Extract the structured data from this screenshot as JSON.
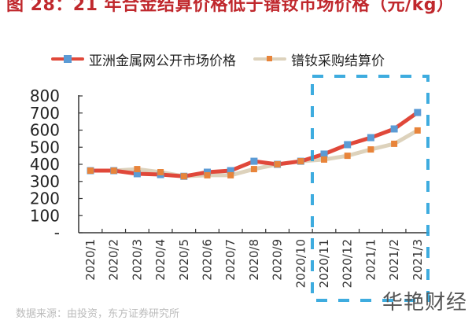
{
  "title": "图 28：21 年合金结算价格低于镨钕市场价格（元/kg）",
  "source": "数据来源：由投资，东方证券研究所",
  "watermark": "华艳财经",
  "legend": [
    {
      "label": "亚洲金属网公开市场价格",
      "line_color": "#e0483a",
      "marker_color": "#5b9bd5"
    },
    {
      "label": "镨钕采购结算价",
      "line_color": "#dcd3bd",
      "marker_color": "#e8843a"
    }
  ],
  "colors": {
    "series1_line": "#e0483a",
    "series1_marker": "#5b9bd5",
    "series2_line": "#ddd2bc",
    "series2_marker": "#e8843a",
    "highlight_box": "#29a3dc",
    "title": "#c0282d"
  },
  "chart_data": {
    "type": "line",
    "title": "图 28：21 年合金结算价格低于镨钕市场价格（元/kg）",
    "xlabel": "",
    "ylabel": "元/kg",
    "categories": [
      "2020/1",
      "2020/2",
      "2020/3",
      "2020/4",
      "2020/5",
      "2020/6",
      "2020/7",
      "2020/8",
      "2020/9",
      "2020/10",
      "2020/11",
      "2020/12",
      "2021/1",
      "2021/2",
      "2021/3"
    ],
    "series": [
      {
        "name": "亚洲金属网公开市场价格",
        "values": [
          363,
          363,
          345,
          340,
          330,
          354,
          363,
          418,
          400,
          418,
          460,
          515,
          556,
          607,
          703
        ]
      },
      {
        "name": "镨钕采购结算价",
        "values": [
          363,
          363,
          372,
          354,
          330,
          336,
          336,
          372,
          400,
          418,
          428,
          450,
          487,
          520,
          598
        ]
      }
    ],
    "yticks": [
      "-",
      "100",
      "200",
      "300",
      "400",
      "500",
      "600",
      "700",
      "800"
    ],
    "ylim": [
      0,
      800
    ],
    "grid": false,
    "legend_position": "top",
    "annotations": [
      {
        "type": "dashed-box",
        "from": "2020/11",
        "to": "2021/3",
        "color": "#29a3dc"
      }
    ]
  }
}
